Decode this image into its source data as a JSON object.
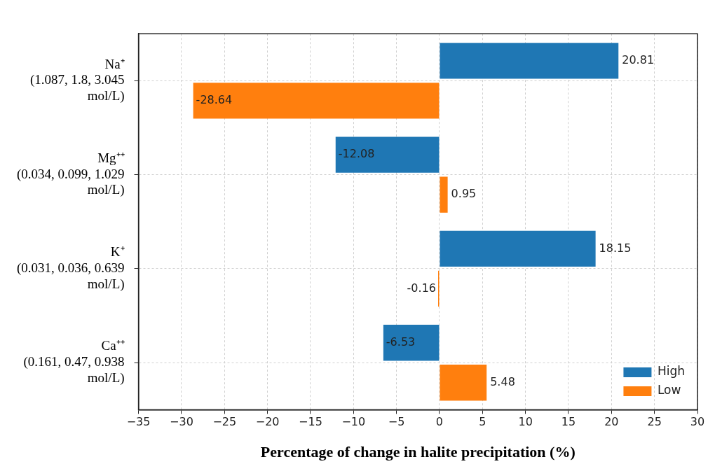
{
  "chart_data": {
    "type": "bar",
    "orientation": "horizontal",
    "xlabel": "Percentage of change in halite precipitation (%)",
    "categories": [
      "Na⁺\n(1.087, 1.8, 3.045\nmol/L)",
      "Mg⁺⁺\n(0.034, 0.099, 1.029\nmol/L)",
      "K⁺\n(0.031, 0.036, 0.639\nmol/L)",
      "Ca⁺⁺\n(0.161, 0.47, 0.938\nmol/L)"
    ],
    "series": [
      {
        "name": "High",
        "color": "#1f77b4",
        "values": [
          20.81,
          -12.08,
          18.15,
          -6.53
        ]
      },
      {
        "name": "Low",
        "color": "#ff7f0e",
        "values": [
          -28.64,
          0.95,
          -0.16,
          5.48
        ]
      }
    ],
    "xlim": [
      -35,
      30
    ],
    "xticks": [
      {
        "value": -35,
        "label": "−35"
      },
      {
        "value": -30,
        "label": "−30"
      },
      {
        "value": -25,
        "label": "−25"
      },
      {
        "value": -20,
        "label": "−20"
      },
      {
        "value": -15,
        "label": "−15"
      },
      {
        "value": -10,
        "label": "−10"
      },
      {
        "value": -5,
        "label": "−5"
      },
      0,
      5,
      10,
      15,
      20,
      25,
      30
    ],
    "data_labels": true,
    "grid": true,
    "legend": "bottom right"
  }
}
